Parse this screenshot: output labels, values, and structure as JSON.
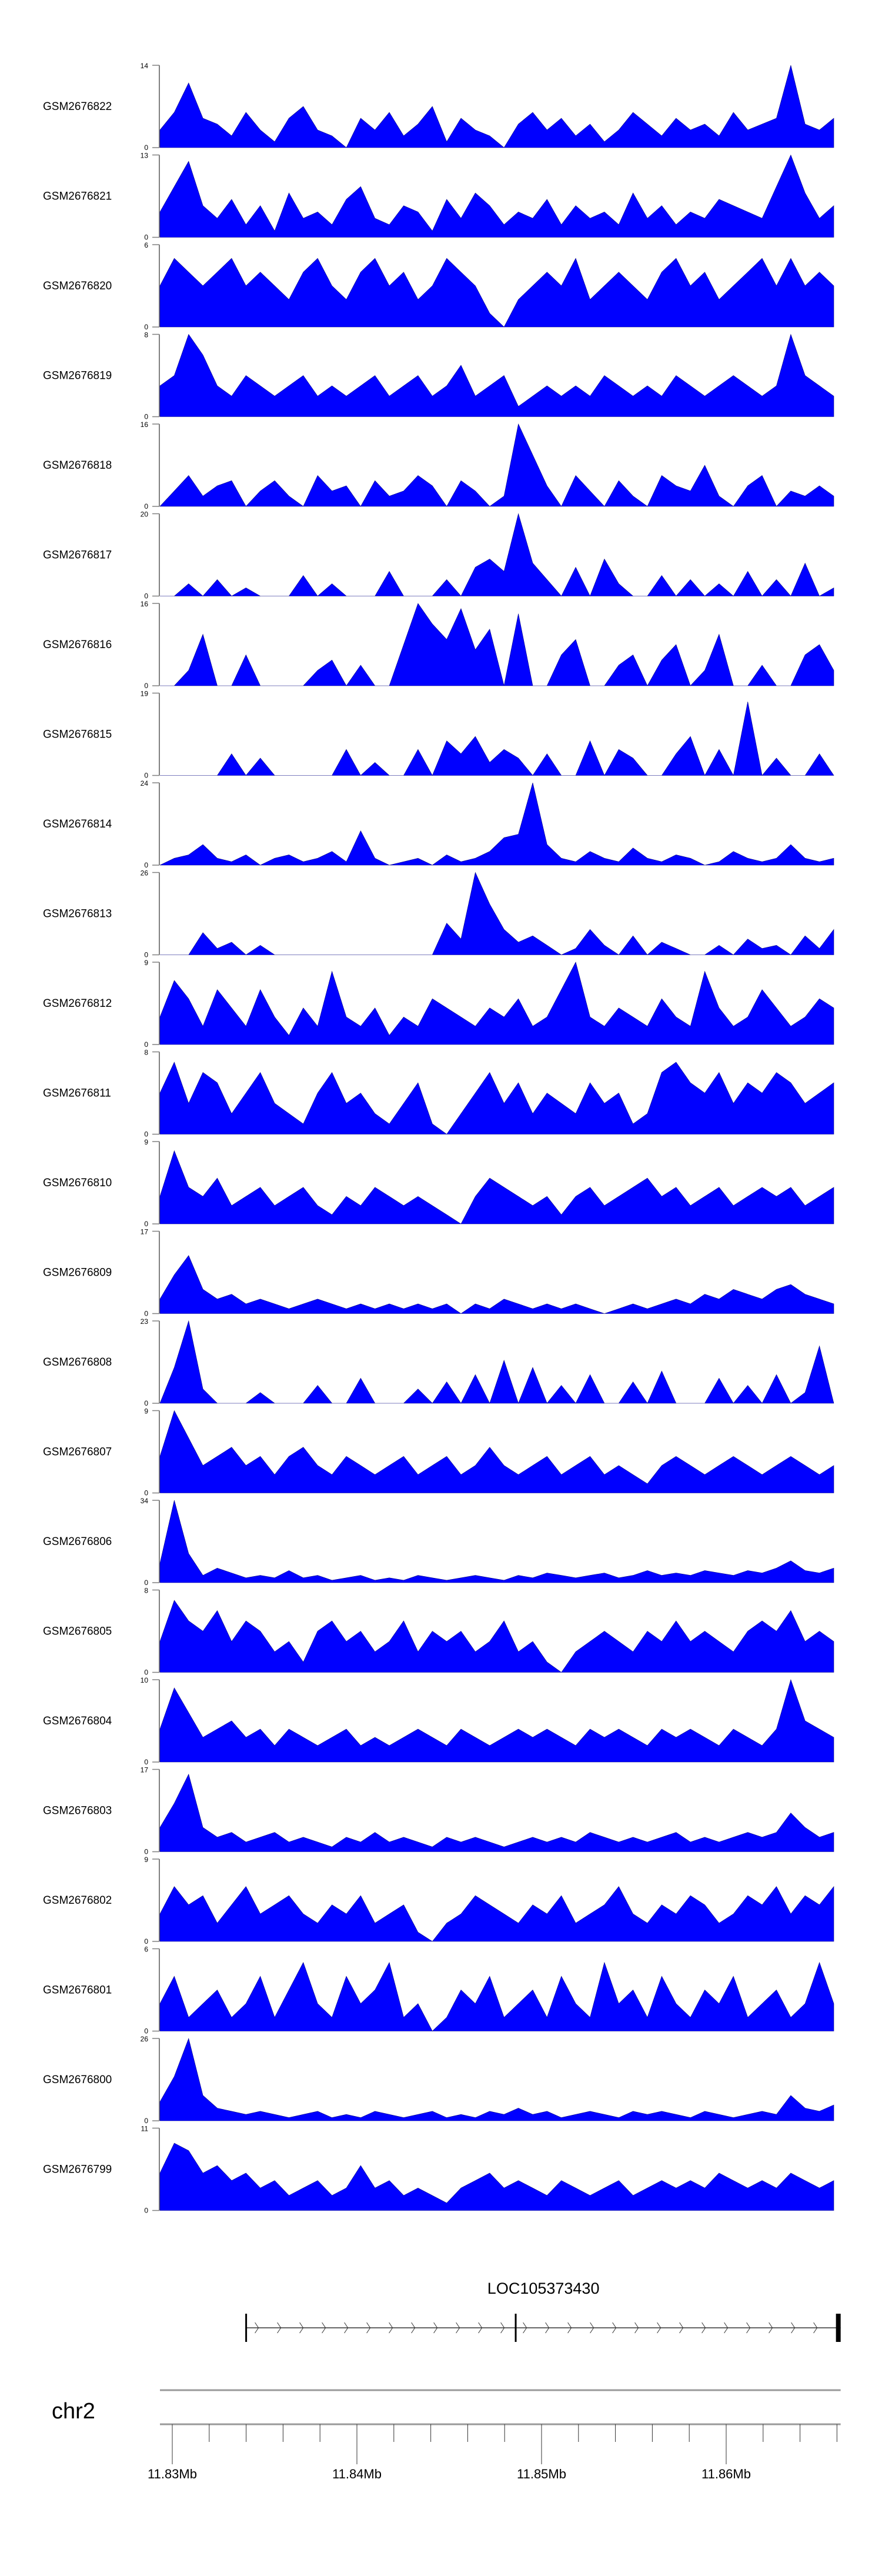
{
  "colors": {
    "signal": "#0000ff",
    "axis": "#808080",
    "text": "#000000"
  },
  "chart_data": {
    "type": "area",
    "title": "",
    "xlabel": "",
    "chromosome": "chr2",
    "x_range_mb": [
      11.8293,
      11.8658
    ],
    "axis_range_mb": [
      11.8293,
      11.8662
    ],
    "axis_ticks_mb": [
      11.83,
      11.84,
      11.85,
      11.86
    ],
    "axis_tick_labels": [
      "11.83Mb",
      "11.84Mb",
      "11.85Mb",
      "11.86Mb"
    ],
    "minor_tick_step_mb": 0.002,
    "gene": {
      "name": "LOC105373430",
      "start_mb": 11.834,
      "end_mb": 11.8662,
      "exons_mb": [
        11.834,
        11.8486,
        11.866
      ],
      "strand": "+"
    },
    "series": [
      {
        "name": "GSM2676822",
        "ymax": 14,
        "values": [
          3,
          6,
          11,
          5,
          4,
          2,
          6,
          3,
          1,
          5,
          7,
          3,
          2,
          0,
          5,
          3,
          6,
          2,
          4,
          7,
          1,
          5,
          3,
          2,
          0,
          4,
          6,
          3,
          5,
          2,
          4,
          1,
          3,
          6,
          4,
          2,
          5,
          3,
          4,
          2,
          6,
          3,
          4,
          5,
          14,
          4,
          3,
          5
        ]
      },
      {
        "name": "GSM2676821",
        "ymax": 13,
        "values": [
          4,
          8,
          12,
          5,
          3,
          6,
          2,
          5,
          1,
          7,
          3,
          4,
          2,
          6,
          8,
          3,
          2,
          5,
          4,
          1,
          6,
          3,
          7,
          5,
          2,
          4,
          3,
          6,
          2,
          5,
          3,
          4,
          2,
          7,
          3,
          5,
          2,
          4,
          3,
          6,
          5,
          4,
          3,
          8,
          13,
          7,
          3,
          5
        ]
      },
      {
        "name": "GSM2676820",
        "ymax": 6,
        "values": [
          3,
          5,
          4,
          3,
          4,
          5,
          3,
          4,
          3,
          2,
          4,
          5,
          3,
          2,
          4,
          5,
          3,
          4,
          2,
          3,
          5,
          4,
          3,
          1,
          0,
          2,
          3,
          4,
          3,
          5,
          2,
          3,
          4,
          3,
          2,
          4,
          5,
          3,
          4,
          2,
          3,
          4,
          5,
          3,
          5,
          3,
          4,
          3
        ]
      },
      {
        "name": "GSM2676819",
        "ymax": 8,
        "values": [
          3,
          4,
          8,
          6,
          3,
          2,
          4,
          3,
          2,
          3,
          4,
          2,
          3,
          2,
          3,
          4,
          2,
          3,
          4,
          2,
          3,
          5,
          2,
          3,
          4,
          1,
          2,
          3,
          2,
          3,
          2,
          4,
          3,
          2,
          3,
          2,
          4,
          3,
          2,
          3,
          4,
          3,
          2,
          3,
          8,
          4,
          3,
          2
        ]
      },
      {
        "name": "GSM2676818",
        "ymax": 16,
        "values": [
          0,
          3,
          6,
          2,
          4,
          5,
          0,
          3,
          5,
          2,
          0,
          6,
          3,
          4,
          0,
          5,
          2,
          3,
          6,
          4,
          0,
          5,
          3,
          0,
          2,
          16,
          10,
          4,
          0,
          6,
          3,
          0,
          5,
          2,
          0,
          6,
          4,
          3,
          8,
          2,
          0,
          4,
          6,
          0,
          3,
          2,
          4,
          2
        ]
      },
      {
        "name": "GSM2676817",
        "ymax": 20,
        "values": [
          0,
          0,
          3,
          0,
          4,
          0,
          2,
          0,
          0,
          0,
          5,
          0,
          3,
          0,
          0,
          0,
          6,
          0,
          0,
          0,
          4,
          0,
          7,
          9,
          6,
          20,
          8,
          4,
          0,
          7,
          0,
          9,
          3,
          0,
          0,
          5,
          0,
          4,
          0,
          3,
          0,
          6,
          0,
          4,
          0,
          8,
          0,
          2
        ]
      },
      {
        "name": "GSM2676816",
        "ymax": 16,
        "values": [
          0,
          0,
          3,
          10,
          0,
          0,
          6,
          0,
          0,
          0,
          0,
          3,
          5,
          0,
          4,
          0,
          0,
          8,
          16,
          12,
          9,
          15,
          7,
          11,
          0,
          14,
          0,
          0,
          6,
          9,
          0,
          0,
          4,
          6,
          0,
          5,
          8,
          0,
          3,
          10,
          0,
          0,
          4,
          0,
          0,
          6,
          8,
          3
        ]
      },
      {
        "name": "GSM2676815",
        "ymax": 19,
        "values": [
          0,
          0,
          0,
          0,
          0,
          5,
          0,
          4,
          0,
          0,
          0,
          0,
          0,
          6,
          0,
          3,
          0,
          0,
          6,
          0,
          8,
          5,
          9,
          3,
          6,
          4,
          0,
          5,
          0,
          0,
          8,
          0,
          6,
          4,
          0,
          0,
          5,
          9,
          0,
          6,
          0,
          17,
          0,
          4,
          0,
          0,
          5,
          0
        ]
      },
      {
        "name": "GSM2676814",
        "ymax": 24,
        "values": [
          0,
          2,
          3,
          6,
          2,
          1,
          3,
          0,
          2,
          3,
          1,
          2,
          4,
          1,
          10,
          2,
          0,
          1,
          2,
          0,
          3,
          1,
          2,
          4,
          8,
          9,
          24,
          6,
          2,
          1,
          4,
          2,
          1,
          5,
          2,
          1,
          3,
          2,
          0,
          1,
          4,
          2,
          1,
          2,
          6,
          2,
          1,
          2
        ]
      },
      {
        "name": "GSM2676813",
        "ymax": 26,
        "values": [
          0,
          0,
          0,
          7,
          2,
          4,
          0,
          3,
          0,
          0,
          0,
          0,
          0,
          0,
          0,
          0,
          0,
          0,
          0,
          0,
          10,
          5,
          26,
          16,
          8,
          4,
          6,
          3,
          0,
          2,
          8,
          3,
          0,
          6,
          0,
          4,
          2,
          0,
          0,
          3,
          0,
          5,
          2,
          3,
          0,
          6,
          2,
          8
        ]
      },
      {
        "name": "GSM2676812",
        "ymax": 9,
        "values": [
          3,
          7,
          5,
          2,
          6,
          4,
          2,
          6,
          3,
          1,
          4,
          2,
          8,
          3,
          2,
          4,
          1,
          3,
          2,
          5,
          4,
          3,
          2,
          4,
          3,
          5,
          2,
          3,
          6,
          9,
          3,
          2,
          4,
          3,
          2,
          5,
          3,
          2,
          8,
          4,
          2,
          3,
          6,
          4,
          2,
          3,
          5,
          4
        ]
      },
      {
        "name": "GSM2676811",
        "ymax": 8,
        "values": [
          4,
          7,
          3,
          6,
          5,
          2,
          4,
          6,
          3,
          2,
          1,
          4,
          6,
          3,
          4,
          2,
          1,
          3,
          5,
          1,
          0,
          2,
          4,
          6,
          3,
          5,
          2,
          4,
          3,
          2,
          5,
          3,
          4,
          1,
          2,
          6,
          7,
          5,
          4,
          6,
          3,
          5,
          4,
          6,
          5,
          3,
          4,
          5
        ]
      },
      {
        "name": "GSM2676810",
        "ymax": 9,
        "values": [
          3,
          8,
          4,
          3,
          5,
          2,
          3,
          4,
          2,
          3,
          4,
          2,
          1,
          3,
          2,
          4,
          3,
          2,
          3,
          2,
          1,
          0,
          3,
          5,
          4,
          3,
          2,
          3,
          1,
          3,
          4,
          2,
          3,
          4,
          5,
          3,
          4,
          2,
          3,
          4,
          2,
          3,
          4,
          3,
          4,
          2,
          3,
          4
        ]
      },
      {
        "name": "GSM2676809",
        "ymax": 17,
        "values": [
          3,
          8,
          12,
          5,
          3,
          4,
          2,
          3,
          2,
          1,
          2,
          3,
          2,
          1,
          2,
          1,
          2,
          1,
          2,
          1,
          2,
          0,
          2,
          1,
          3,
          2,
          1,
          2,
          1,
          2,
          1,
          0,
          1,
          2,
          1,
          2,
          3,
          2,
          4,
          3,
          5,
          4,
          3,
          5,
          6,
          4,
          3,
          2
        ]
      },
      {
        "name": "GSM2676808",
        "ymax": 23,
        "values": [
          0,
          10,
          23,
          4,
          0,
          0,
          0,
          3,
          0,
          0,
          0,
          5,
          0,
          0,
          7,
          0,
          0,
          0,
          4,
          0,
          6,
          0,
          8,
          0,
          12,
          0,
          10,
          0,
          5,
          0,
          8,
          0,
          0,
          6,
          0,
          9,
          0,
          0,
          0,
          7,
          0,
          5,
          0,
          8,
          0,
          3,
          16,
          0
        ]
      },
      {
        "name": "GSM2676807",
        "ymax": 9,
        "values": [
          4,
          9,
          6,
          3,
          4,
          5,
          3,
          4,
          2,
          4,
          5,
          3,
          2,
          4,
          3,
          2,
          3,
          4,
          2,
          3,
          4,
          2,
          3,
          5,
          3,
          2,
          3,
          4,
          2,
          3,
          4,
          2,
          3,
          2,
          1,
          3,
          4,
          3,
          2,
          3,
          4,
          3,
          2,
          3,
          4,
          3,
          2,
          3
        ]
      },
      {
        "name": "GSM2676806",
        "ymax": 34,
        "values": [
          8,
          34,
          12,
          3,
          6,
          4,
          2,
          3,
          2,
          5,
          2,
          3,
          1,
          2,
          3,
          1,
          2,
          1,
          3,
          2,
          1,
          2,
          3,
          2,
          1,
          3,
          2,
          4,
          3,
          2,
          3,
          4,
          2,
          3,
          5,
          3,
          4,
          3,
          5,
          4,
          3,
          5,
          4,
          6,
          9,
          5,
          4,
          6
        ]
      },
      {
        "name": "GSM2676805",
        "ymax": 8,
        "values": [
          3,
          7,
          5,
          4,
          6,
          3,
          5,
          4,
          2,
          3,
          1,
          4,
          5,
          3,
          4,
          2,
          3,
          5,
          2,
          4,
          3,
          4,
          2,
          3,
          5,
          2,
          3,
          1,
          0,
          2,
          3,
          4,
          3,
          2,
          4,
          3,
          5,
          3,
          4,
          3,
          2,
          4,
          5,
          4,
          6,
          3,
          4,
          3
        ]
      },
      {
        "name": "GSM2676804",
        "ymax": 10,
        "values": [
          4,
          9,
          6,
          3,
          4,
          5,
          3,
          4,
          2,
          4,
          3,
          2,
          3,
          4,
          2,
          3,
          2,
          3,
          4,
          3,
          2,
          4,
          3,
          2,
          3,
          4,
          3,
          4,
          3,
          2,
          4,
          3,
          4,
          3,
          2,
          4,
          3,
          4,
          3,
          2,
          4,
          3,
          2,
          4,
          10,
          5,
          4,
          3
        ]
      },
      {
        "name": "GSM2676803",
        "ymax": 17,
        "values": [
          5,
          10,
          16,
          5,
          3,
          4,
          2,
          3,
          4,
          2,
          3,
          2,
          1,
          3,
          2,
          4,
          2,
          3,
          2,
          1,
          3,
          2,
          3,
          2,
          1,
          2,
          3,
          2,
          3,
          2,
          4,
          3,
          2,
          3,
          2,
          3,
          4,
          2,
          3,
          2,
          3,
          4,
          3,
          4,
          8,
          5,
          3,
          4
        ]
      },
      {
        "name": "GSM2676802",
        "ymax": 9,
        "values": [
          3,
          6,
          4,
          5,
          2,
          4,
          6,
          3,
          4,
          5,
          3,
          2,
          4,
          3,
          5,
          2,
          3,
          4,
          1,
          0,
          2,
          3,
          5,
          4,
          3,
          2,
          4,
          3,
          5,
          2,
          3,
          4,
          6,
          3,
          2,
          4,
          3,
          5,
          4,
          2,
          3,
          5,
          4,
          6,
          3,
          5,
          4,
          6
        ]
      },
      {
        "name": "GSM2676801",
        "ymax": 6,
        "values": [
          2,
          4,
          1,
          2,
          3,
          1,
          2,
          4,
          1,
          3,
          5,
          2,
          1,
          4,
          2,
          3,
          5,
          1,
          2,
          0,
          1,
          3,
          2,
          4,
          1,
          2,
          3,
          1,
          4,
          2,
          1,
          5,
          2,
          3,
          1,
          4,
          2,
          1,
          3,
          2,
          4,
          1,
          2,
          3,
          1,
          2,
          5,
          2
        ]
      },
      {
        "name": "GSM2676800",
        "ymax": 26,
        "values": [
          6,
          14,
          26,
          8,
          4,
          3,
          2,
          3,
          2,
          1,
          2,
          3,
          1,
          2,
          1,
          3,
          2,
          1,
          2,
          3,
          1,
          2,
          1,
          3,
          2,
          4,
          2,
          3,
          1,
          2,
          3,
          2,
          1,
          3,
          2,
          3,
          2,
          1,
          3,
          2,
          1,
          2,
          3,
          2,
          8,
          4,
          3,
          5
        ]
      },
      {
        "name": "GSM2676799",
        "ymax": 11,
        "values": [
          5,
          9,
          8,
          5,
          6,
          4,
          5,
          3,
          4,
          2,
          3,
          4,
          2,
          3,
          6,
          3,
          4,
          2,
          3,
          2,
          1,
          3,
          4,
          5,
          3,
          4,
          3,
          2,
          4,
          3,
          2,
          3,
          4,
          2,
          3,
          4,
          3,
          4,
          3,
          5,
          4,
          3,
          4,
          3,
          5,
          4,
          3,
          4
        ]
      }
    ]
  }
}
